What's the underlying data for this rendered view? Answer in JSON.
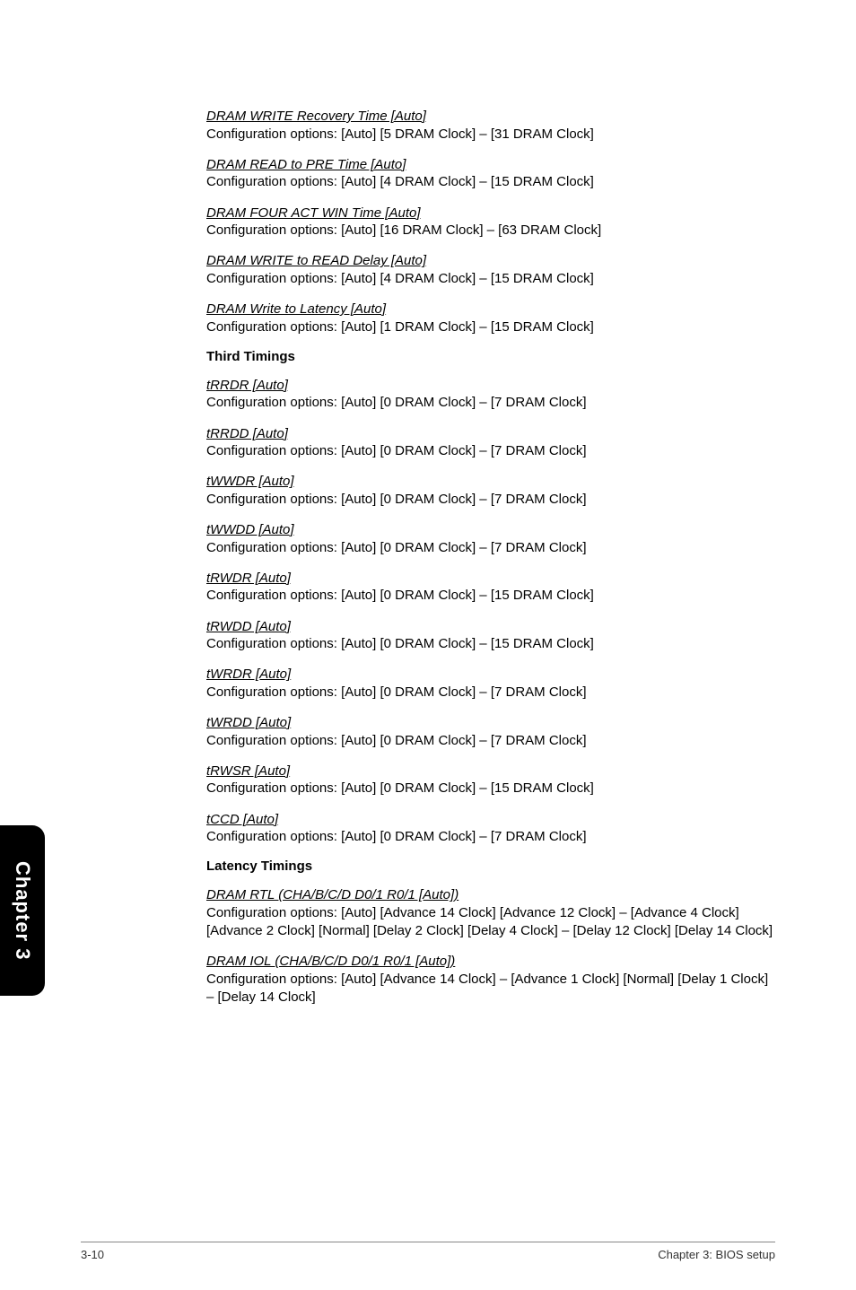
{
  "sideTab": "Chapter 3",
  "footer": {
    "left": "3-10",
    "right": "Chapter 3: BIOS setup"
  },
  "sections": [
    {
      "type": "item",
      "title": "DRAM WRITE Recovery Time [Auto]",
      "desc": "Configuration options: [Auto] [5 DRAM Clock] – [31 DRAM Clock]"
    },
    {
      "type": "item",
      "title": "DRAM READ to PRE Time [Auto]",
      "desc": "Configuration options: [Auto] [4 DRAM Clock] – [15 DRAM Clock]"
    },
    {
      "type": "item",
      "title": "DRAM FOUR ACT WIN Time [Auto]",
      "desc": "Configuration options: [Auto] [16 DRAM Clock] – [63 DRAM Clock]"
    },
    {
      "type": "item",
      "title": "DRAM WRITE to READ Delay [Auto]",
      "desc": "Configuration options: [Auto] [4 DRAM Clock] – [15 DRAM Clock]"
    },
    {
      "type": "item",
      "title": "DRAM Write to Latency [Auto]",
      "desc": "Configuration options: [Auto] [1 DRAM Clock] – [15 DRAM Clock]"
    },
    {
      "type": "heading",
      "text": "Third Timings"
    },
    {
      "type": "item",
      "title": "tRRDR [Auto]",
      "desc": "Configuration options: [Auto] [0 DRAM Clock] – [7 DRAM Clock]"
    },
    {
      "type": "item",
      "title": "tRRDD [Auto]",
      "desc": "Configuration options: [Auto] [0 DRAM Clock] – [7 DRAM Clock]"
    },
    {
      "type": "item",
      "title": "tWWDR [Auto]",
      "desc": "Configuration options: [Auto] [0 DRAM Clock] – [7 DRAM Clock]"
    },
    {
      "type": "item",
      "title": "tWWDD [Auto]",
      "desc": "Configuration options: [Auto] [0 DRAM Clock] – [7 DRAM Clock]"
    },
    {
      "type": "item",
      "title": "tRWDR [Auto]",
      "desc": "Configuration options: [Auto] [0 DRAM Clock] – [15 DRAM Clock]"
    },
    {
      "type": "item",
      "title": "tRWDD [Auto]",
      "desc": "Configuration options: [Auto] [0 DRAM Clock] – [15 DRAM Clock]"
    },
    {
      "type": "item",
      "title": "tWRDR [Auto]",
      "desc": "Configuration options: [Auto] [0 DRAM Clock] – [7 DRAM Clock]"
    },
    {
      "type": "item",
      "title": "tWRDD [Auto]",
      "desc": "Configuration options: [Auto] [0 DRAM Clock] – [7 DRAM Clock]"
    },
    {
      "type": "item",
      "title": "tRWSR [Auto]",
      "desc": "Configuration options: [Auto] [0 DRAM Clock] – [15 DRAM Clock]"
    },
    {
      "type": "item",
      "title": "tCCD [Auto]",
      "desc": "Configuration options: [Auto] [0 DRAM Clock] – [7 DRAM Clock]"
    },
    {
      "type": "heading",
      "text": "Latency Timings"
    },
    {
      "type": "item",
      "title": "DRAM RTL (CHA/B/C/D D0/1 R0/1 [Auto])",
      "desc": "Configuration options: [Auto] [Advance 14 Clock] [Advance 12 Clock] – [Advance 4 Clock] [Advance 2 Clock] [Normal] [Delay 2 Clock] [Delay 4 Clock] – [Delay 12 Clock] [Delay 14 Clock]"
    },
    {
      "type": "item",
      "title": "DRAM IOL (CHA/B/C/D D0/1 R0/1 [Auto])",
      "desc": "Configuration options: [Auto] [Advance 14 Clock] – [Advance 1 Clock] [Normal] [Delay 1 Clock] – [Delay 14 Clock]"
    }
  ]
}
